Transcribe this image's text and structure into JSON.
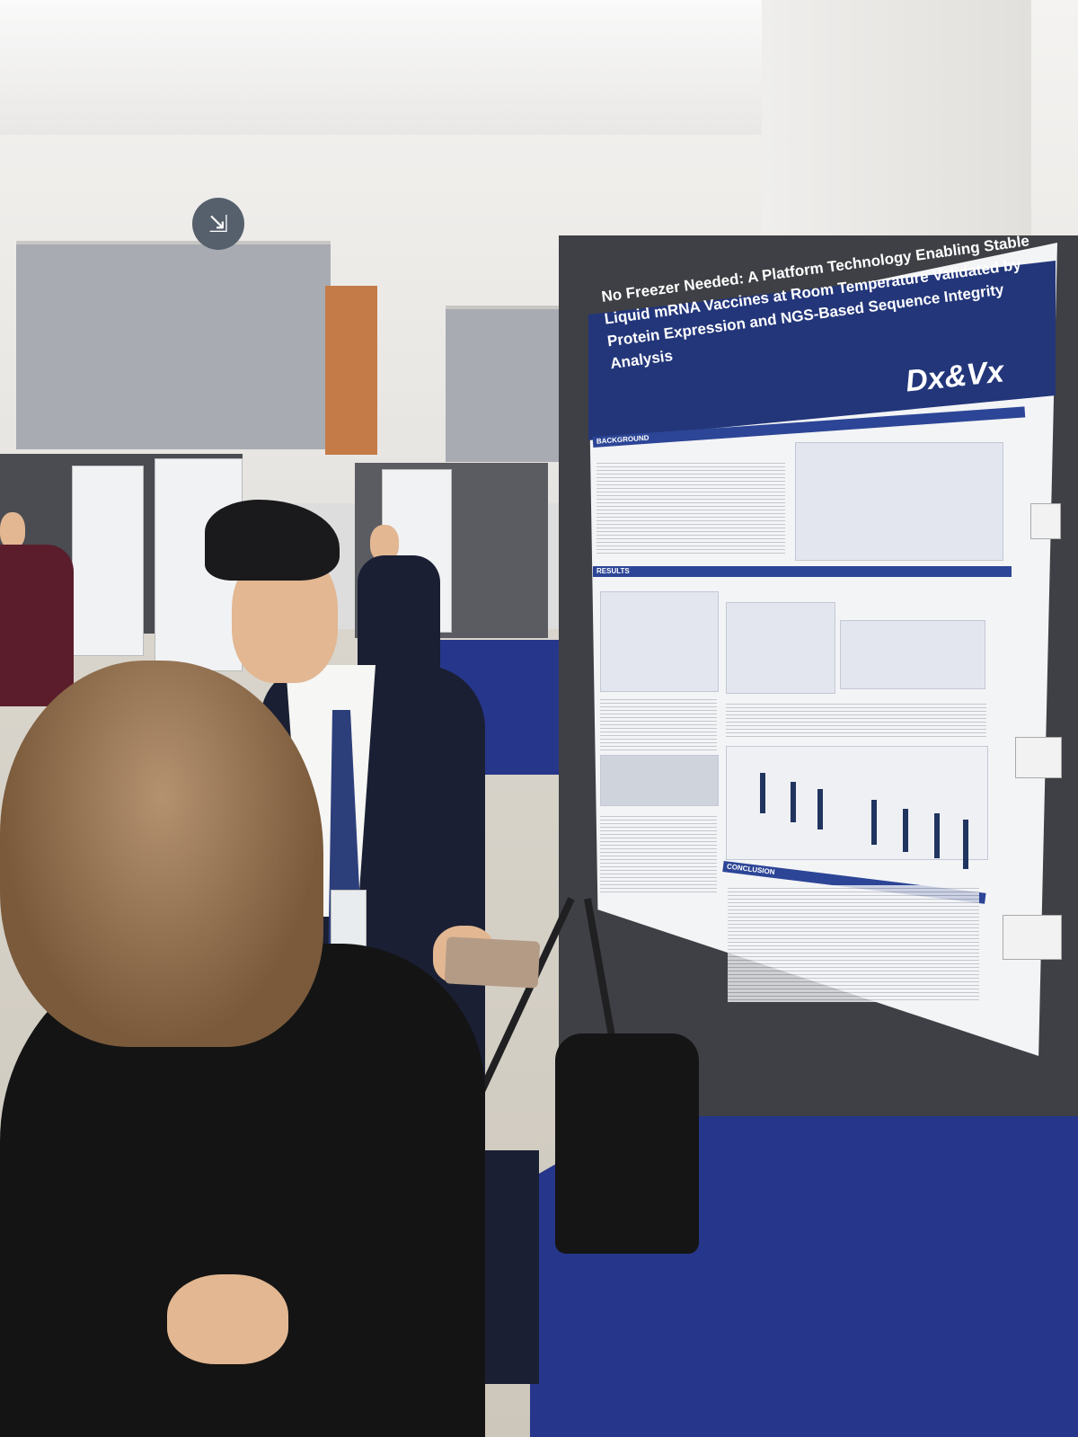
{
  "poster": {
    "title_line1": "No Freezer Needed: A Platform Technology Enabling Stable",
    "title_line2": "Liquid mRNA Vaccines at Room Temperature Validated by",
    "title_line3": "Protein Expression and NGS-Based Sequence Integrity Analysis",
    "logo": "Dx&Vx",
    "sections": [
      "BACKGROUND",
      "RESULTS",
      "CONCLUSION"
    ]
  },
  "colors": {
    "poster_header": "#23367a",
    "carpet": "#26368a",
    "orange_panel": "#c57b47"
  }
}
